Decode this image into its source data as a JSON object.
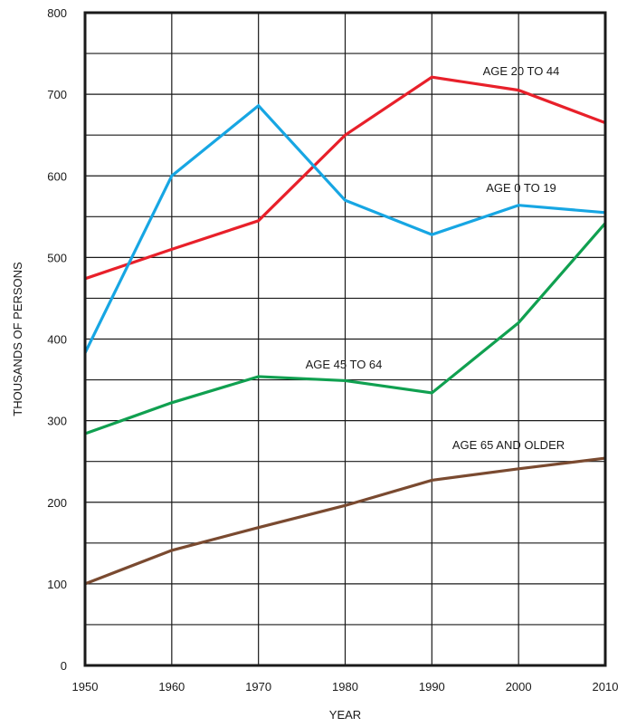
{
  "chart_data": {
    "type": "line",
    "xlabel": "YEAR",
    "ylabel": "THOUSANDS OF PERSONS",
    "x": [
      1950,
      1960,
      1970,
      1980,
      1990,
      2000,
      2010
    ],
    "x_ticks": [
      "1950",
      "1960",
      "1970",
      "1980",
      "1990",
      "2000",
      "2010"
    ],
    "ylim": [
      0,
      800
    ],
    "y_ticks": [
      "0",
      "100",
      "200",
      "300",
      "400",
      "500",
      "600",
      "700",
      "800"
    ],
    "grid": true,
    "series": [
      {
        "name": "AGE 20 TO 44",
        "color": "#e8202a",
        "values": [
          474,
          510,
          545,
          650,
          721,
          705,
          665
        ]
      },
      {
        "name": "AGE 0 TO 19",
        "color": "#17a6e3",
        "values": [
          383,
          600,
          686,
          570,
          528,
          564,
          555
        ]
      },
      {
        "name": "AGE 45 TO 64",
        "color": "#10a050",
        "values": [
          284,
          322,
          354,
          349,
          334,
          420,
          542
        ]
      },
      {
        "name": "AGE 65 AND OLDER",
        "color": "#7a4a30",
        "values": [
          100,
          141,
          169,
          196,
          227,
          241,
          254
        ]
      }
    ]
  }
}
